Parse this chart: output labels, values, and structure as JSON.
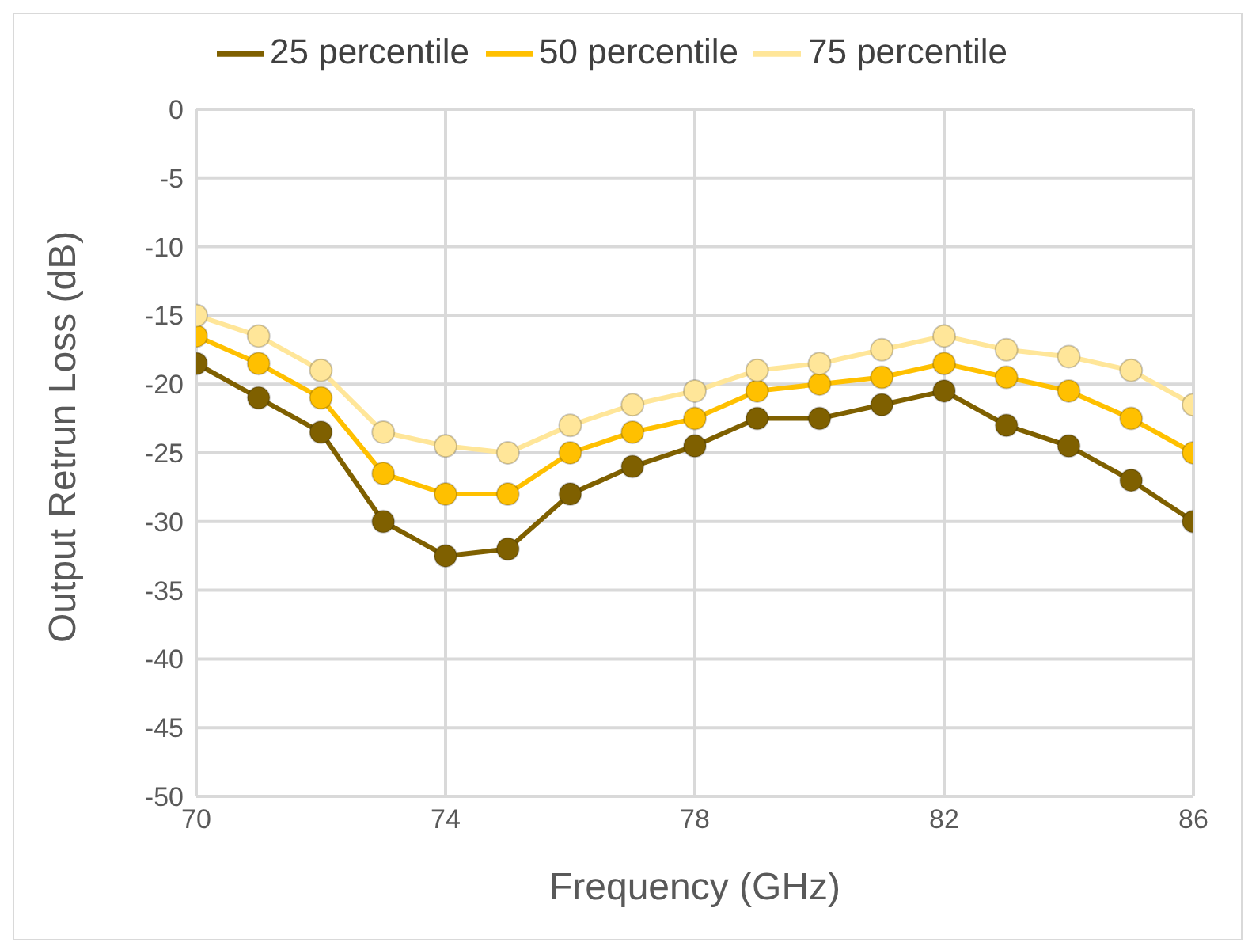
{
  "chart_data": {
    "type": "line",
    "xlabel": "Frequency (GHz)",
    "ylabel": "Output Retrun Loss (dB)",
    "x": [
      70,
      71,
      72,
      73,
      74,
      75,
      76,
      77,
      78,
      79,
      80,
      81,
      82,
      83,
      84,
      85,
      86
    ],
    "series": [
      {
        "name": "25 percentile",
        "color": "#7f6000",
        "values": [
          -18.5,
          -21,
          -23.5,
          -30,
          -32.5,
          -32,
          -28,
          -26,
          -24.5,
          -22.5,
          -22.5,
          -21.5,
          -20.5,
          -23,
          -24.5,
          -27,
          -30
        ]
      },
      {
        "name": "50 percentile",
        "color": "#ffc000",
        "values": [
          -16.5,
          -18.5,
          -21,
          -26.5,
          -28,
          -28,
          -25,
          -23.5,
          -22.5,
          -20.5,
          -20,
          -19.5,
          -18.5,
          -19.5,
          -20.5,
          -22.5,
          -25
        ]
      },
      {
        "name": "75 percentile",
        "color": "#ffe699",
        "values": [
          -15,
          -16.5,
          -19,
          -23.5,
          -24.5,
          -25,
          -23,
          -21.5,
          -20.5,
          -19,
          -18.5,
          -17.5,
          -16.5,
          -17.5,
          -18,
          -19,
          -21.5
        ]
      }
    ],
    "xlim": [
      70,
      86
    ],
    "xticks": [
      70,
      74,
      78,
      82,
      86
    ],
    "ylim": [
      -50,
      0
    ],
    "yticks": [
      0,
      -5,
      -10,
      -15,
      -20,
      -25,
      -30,
      -35,
      -40,
      -45,
      -50
    ],
    "grid": true,
    "legend": "top",
    "marker": "circle",
    "line_style": "solid"
  }
}
